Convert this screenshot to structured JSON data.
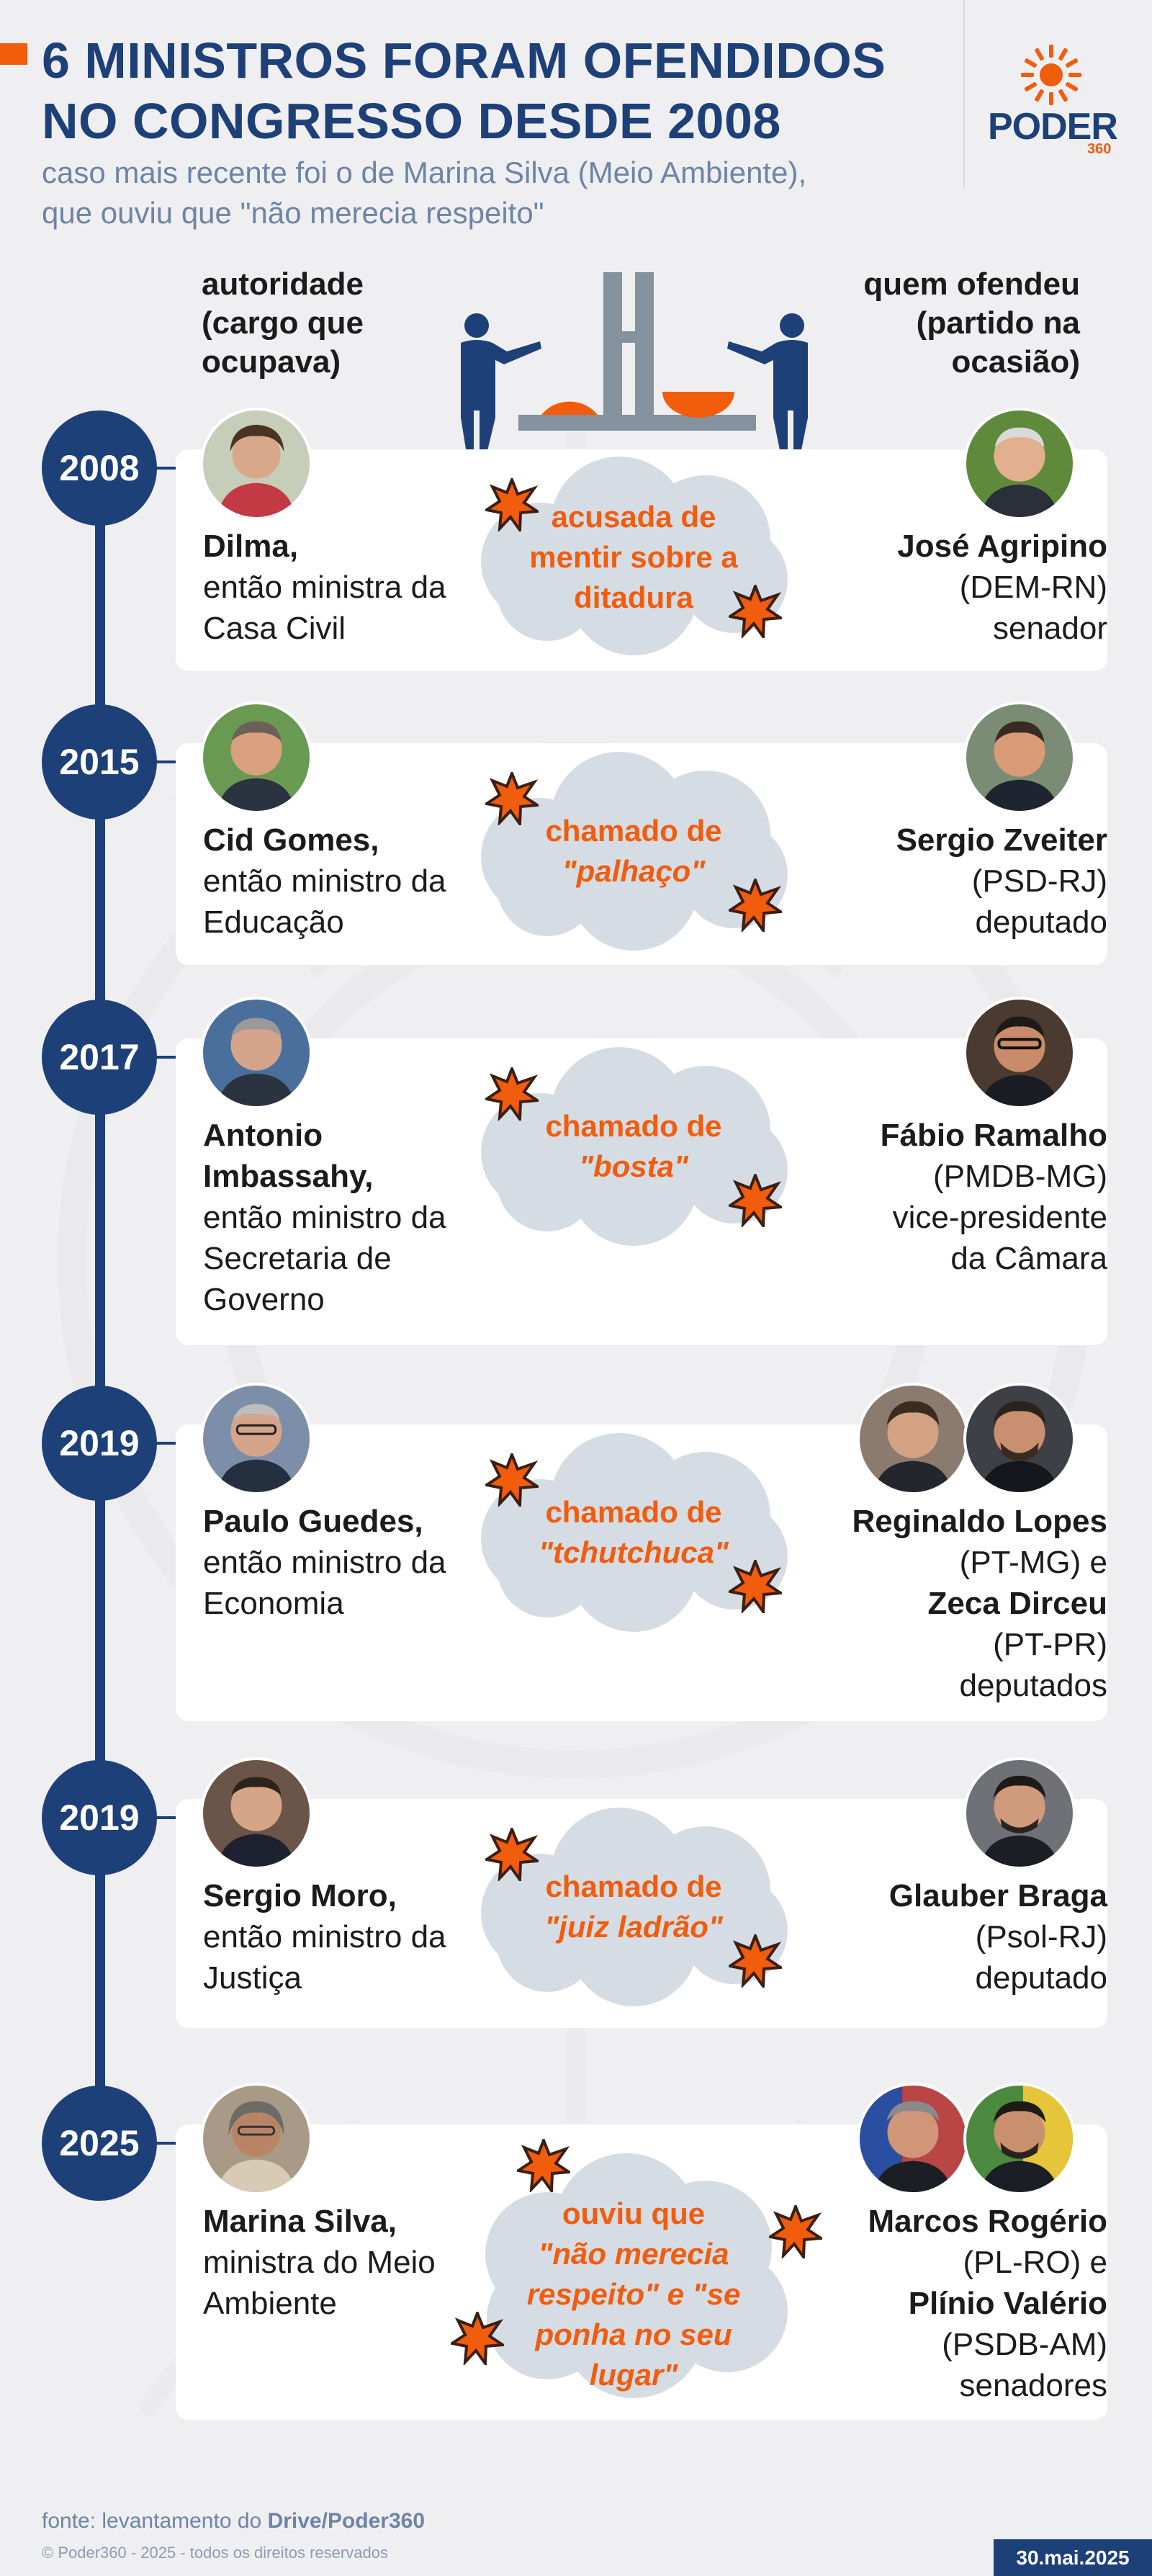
{
  "header": {
    "title_line1": "6 MINISTROS FORAM OFENDIDOS",
    "title_line2": "NO CONGRESSO DESDE 2008",
    "subtitle_line1": "caso mais recente foi o de Marina Silva (Meio Ambiente),",
    "subtitle_line2": "que ouviu que \"não merecia respeito\"",
    "logo_text": "PODER",
    "logo_number": "360"
  },
  "columns": {
    "left": [
      "autoridade",
      "(cargo que",
      "ocupava)"
    ],
    "right": [
      "quem ofendeu",
      "(partido na",
      "ocasião)"
    ]
  },
  "entries": [
    {
      "year": "2008",
      "name": "Dilma,",
      "role": [
        "então ministra da",
        "Casa Civil"
      ],
      "insult_lines": [
        "acusada de",
        "mentir sobre a",
        "ditadura"
      ],
      "insult_italic": [],
      "offender_lines": [
        {
          "text": "José Agripino",
          "bold": true
        },
        {
          "text": "(DEM-RN)",
          "bold": false
        },
        {
          "text": "senador",
          "bold": false
        }
      ]
    },
    {
      "year": "2015",
      "name": "Cid Gomes,",
      "role": [
        "então ministro da",
        "Educação"
      ],
      "insult_lines": [
        "chamado de"
      ],
      "insult_italic": [
        "\"palhaço\""
      ],
      "offender_lines": [
        {
          "text": "Sergio Zveiter",
          "bold": true
        },
        {
          "text": "(PSD-RJ)",
          "bold": false
        },
        {
          "text": "deputado",
          "bold": false
        }
      ]
    },
    {
      "year": "2017",
      "name": "Antonio Imbassahy,",
      "role": [
        "então ministro da",
        "Secretaria de",
        "Governo"
      ],
      "insult_lines": [
        "chamado de"
      ],
      "insult_italic": [
        "\"bosta\""
      ],
      "offender_lines": [
        {
          "text": "Fábio Ramalho",
          "bold": true
        },
        {
          "text": "(PMDB-MG)",
          "bold": false
        },
        {
          "text": "vice-presidente",
          "bold": false
        },
        {
          "text": "da Câmara",
          "bold": false
        }
      ]
    },
    {
      "year": "2019",
      "name": "Paulo Guedes,",
      "role": [
        "então ministro da",
        "Economia"
      ],
      "insult_lines": [
        "chamado de"
      ],
      "insult_italic": [
        "\"tchutchuca\""
      ],
      "offender_lines": [
        {
          "text": "Reginaldo Lopes",
          "bold": true
        },
        {
          "text": "(PT-MG) e",
          "bold": false
        },
        {
          "text": "Zeca Dirceu",
          "bold": true
        },
        {
          "text": "(PT-PR)",
          "bold": false
        },
        {
          "text": "deputados",
          "bold": false
        }
      ]
    },
    {
      "year": "2019",
      "name": "Sergio Moro,",
      "role": [
        "então ministro da",
        "Justiça"
      ],
      "insult_lines": [
        "chamado de"
      ],
      "insult_italic": [
        "\"juiz ladrão\""
      ],
      "offender_lines": [
        {
          "text": "Glauber Braga",
          "bold": true
        },
        {
          "text": "(Psol-RJ)",
          "bold": false
        },
        {
          "text": "deputado",
          "bold": false
        }
      ]
    },
    {
      "year": "2025",
      "name": "Marina Silva,",
      "role": [
        "ministra do Meio",
        "Ambiente"
      ],
      "insult_lines": [
        "ouviu que"
      ],
      "insult_italic": [
        "\"não merecia",
        "respeito\" e \"se",
        "ponha no seu",
        "lugar\""
      ],
      "offender_lines": [
        {
          "text": "Marcos Rogério",
          "bold": true
        },
        {
          "text": "(PL-RO) e",
          "bold": false
        },
        {
          "text": "Plínio Valério",
          "bold": true
        },
        {
          "text": "(PSDB-AM)",
          "bold": false
        },
        {
          "text": "senadores",
          "bold": false
        }
      ]
    }
  ],
  "footer": {
    "source_prefix": "fonte: levantamento do ",
    "source_bold": "Drive/Poder360",
    "copyright": "© Poder360 - 2025 - todos os direitos reservados",
    "date": "30.mai.2025"
  },
  "colors": {
    "navy": "#1d4079",
    "orange": "#f25c0d",
    "cloud": "#d6dce3",
    "background": "#efeff1"
  }
}
